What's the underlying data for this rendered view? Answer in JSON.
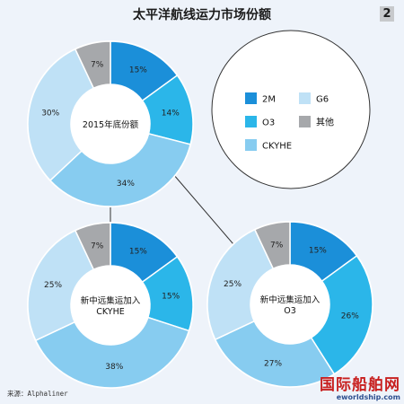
{
  "title": "太平洋航线运力市场份额",
  "page_number": "2",
  "source": "来源：Alphaliner",
  "watermark": {
    "main": "国际船舶网",
    "sub": "eworldship.com"
  },
  "colors": {
    "2M": "#1b8fd9",
    "O3": "#2bb6e9",
    "CKYHE": "#87ccf0",
    "G6": "#bfe1f6",
    "其他": "#a6a8ab"
  },
  "legend": [
    {
      "key": "2M",
      "label": "2M"
    },
    {
      "key": "G6",
      "label": "G6"
    },
    {
      "key": "O3",
      "label": "O3"
    },
    {
      "key": "其他",
      "label": "其他"
    },
    {
      "key": "CKYHE",
      "label": "CKYHE"
    }
  ],
  "chart_data": [
    {
      "type": "pie",
      "center_label": [
        "2015年底份额"
      ],
      "slices": [
        {
          "key": "2M",
          "value": 15,
          "label": "15%"
        },
        {
          "key": "O3",
          "value": 14,
          "label": "14%"
        },
        {
          "key": "CKYHE",
          "value": 34,
          "label": "34%"
        },
        {
          "key": "G6",
          "value": 30,
          "label": "30%"
        },
        {
          "key": "其他",
          "value": 7,
          "label": "7%"
        }
      ]
    },
    {
      "type": "pie",
      "center_label": [
        "新中远集运加入",
        "CKYHE"
      ],
      "slices": [
        {
          "key": "2M",
          "value": 15,
          "label": "15%"
        },
        {
          "key": "O3",
          "value": 15,
          "label": "15%"
        },
        {
          "key": "CKYHE",
          "value": 38,
          "label": "38%"
        },
        {
          "key": "G6",
          "value": 25,
          "label": "25%"
        },
        {
          "key": "其他",
          "value": 7,
          "label": "7%"
        }
      ]
    },
    {
      "type": "pie",
      "center_label": [
        "新中远集运加入",
        "O3"
      ],
      "slices": [
        {
          "key": "2M",
          "value": 15,
          "label": "15%"
        },
        {
          "key": "O3",
          "value": 26,
          "label": "26%"
        },
        {
          "key": "CKYHE",
          "value": 27,
          "label": "27%"
        },
        {
          "key": "G6",
          "value": 25,
          "label": "25%"
        },
        {
          "key": "其他",
          "value": 7,
          "label": "7%"
        }
      ]
    }
  ]
}
